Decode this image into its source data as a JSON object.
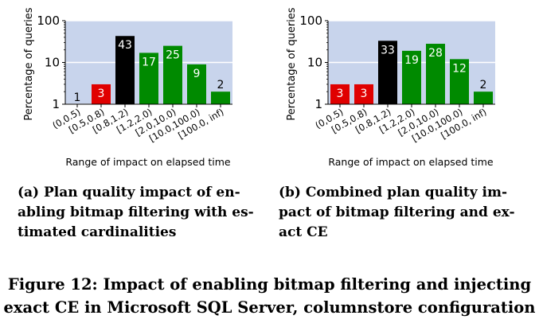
{
  "chart_data": [
    {
      "type": "bar",
      "ylabel": "Percentage of queries",
      "xlabel": "Range of impact on elapsed time",
      "yscale": "log",
      "ylim": [
        1,
        100
      ],
      "yticks": [
        "1",
        "10",
        "100"
      ],
      "grid": "horizontal",
      "categories": [
        "(0,0.5)",
        "[0.5,0.8)",
        "[0.8,1.2)",
        "[1.2,2.0)",
        "[2.0,10.0)",
        "[10.0,100.0)",
        "[100.0, inf)"
      ],
      "values": [
        1,
        3,
        43,
        17,
        25,
        9,
        2
      ],
      "bar_colors": [
        "#e00000",
        "#e00000",
        "#000000",
        "#008a00",
        "#008a00",
        "#008a00",
        "#008a00"
      ],
      "caption": "(a) Plan quality impact of en-abling bitmap filtering with es-timated cardinalities"
    },
    {
      "type": "bar",
      "ylabel": "Percentage of queries",
      "xlabel": "Range of impact on elapsed time",
      "yscale": "log",
      "ylim": [
        1,
        100
      ],
      "yticks": [
        "1",
        "10",
        "100"
      ],
      "grid": "horizontal",
      "categories": [
        "(0,0.5)",
        "[0.5,0.8)",
        "[0.8,1.2)",
        "[1.2,2.0)",
        "[2.0,10.0)",
        "[10.0,100.0)",
        "[100.0, inf)"
      ],
      "values": [
        3,
        3,
        33,
        19,
        28,
        12,
        2
      ],
      "bar_colors": [
        "#e00000",
        "#e00000",
        "#000000",
        "#008a00",
        "#008a00",
        "#008a00",
        "#008a00"
      ],
      "caption": "(b) Combined plan quality im-pact of bitmap filtering and ex-act CE"
    }
  ],
  "colors": {
    "plot_background": "#c8d4ec",
    "grid": "#ffffff",
    "axis": "#000000",
    "label_text": "#ffffff"
  },
  "subcaptions": {
    "a": [
      "(a) Plan quality impact of en-",
      "abling bitmap filtering with es-",
      "timated cardinalities"
    ],
    "b": [
      "(b) Combined plan quality im-",
      "pact of bitmap filtering and ex-",
      "act CE"
    ]
  },
  "figure_caption": [
    "Figure 12: Impact of enabling bitmap filtering and injecting",
    "exact CE in Microsoft SQL Server, columnstore configuration"
  ]
}
